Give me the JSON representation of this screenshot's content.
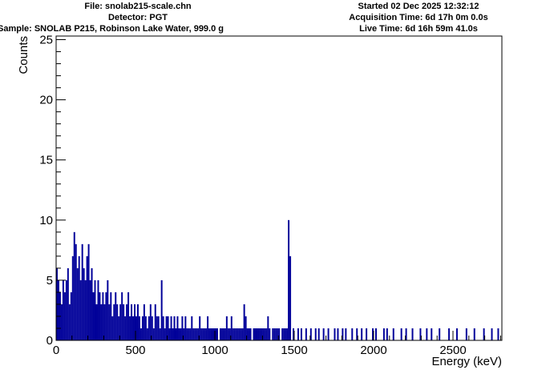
{
  "header": {
    "file": "File: snolab215-scale.chn",
    "detector": "Detector: PGT",
    "sample": "Sample: SNOLAB P215, Robinson Lake Water, 999.0 g",
    "started": "Started 02 Dec 2025 12:32:12",
    "acquisition": "Acquisition Time: 6d 17h 0m 0.0s",
    "live": "Live Time: 6d 16h 59m 41.0s"
  },
  "chart_data": {
    "type": "bar",
    "title": "",
    "xlabel": "Energy (keV)",
    "ylabel": "Counts",
    "xlim": [
      0,
      2808
    ],
    "ylim": [
      0,
      25.3
    ],
    "x_ticks": [
      "0",
      "500",
      "1000",
      "1500",
      "2000",
      "2500"
    ],
    "x_tick_values": [
      0,
      500,
      1000,
      1500,
      2000,
      2500
    ],
    "y_ticks": [
      "0",
      "5",
      "10",
      "15",
      "20",
      "25"
    ],
    "y_tick_values": [
      0,
      5,
      10,
      15,
      20,
      25
    ],
    "bin_width": 10,
    "x_start": 0,
    "color": "#000099",
    "counts": [
      6,
      5,
      4,
      3,
      5,
      4,
      5,
      6,
      3,
      4,
      7,
      9,
      8,
      6,
      7,
      5,
      8,
      6,
      5,
      7,
      8,
      5,
      6,
      4,
      5,
      3,
      5,
      4,
      3,
      4,
      3,
      4,
      5,
      3,
      4,
      2,
      3,
      4,
      3,
      2,
      3,
      4,
      3,
      2,
      3,
      4,
      2,
      3,
      2,
      3,
      2,
      3,
      2,
      1,
      2,
      3,
      2,
      1,
      2,
      3,
      2,
      1,
      3,
      2,
      2,
      1,
      5,
      2,
      1,
      2,
      2,
      1,
      2,
      1,
      2,
      1,
      2,
      1,
      1,
      2,
      1,
      2,
      1,
      1,
      1,
      2,
      1,
      1,
      1,
      1,
      2,
      1,
      1,
      1,
      1,
      2,
      1,
      1,
      1,
      1,
      1,
      1,
      0,
      1,
      1,
      1,
      1,
      2,
      1,
      1,
      2,
      1,
      1,
      1,
      1,
      1,
      1,
      1,
      3,
      2,
      1,
      1,
      1,
      0,
      1,
      1,
      1,
      1,
      1,
      1,
      1,
      1,
      1,
      2,
      1,
      0,
      1,
      1,
      1,
      1,
      1,
      0,
      1,
      1,
      1,
      1,
      10,
      7,
      0,
      1,
      0,
      0,
      1,
      0,
      1,
      0,
      0,
      1,
      0,
      0,
      1,
      0,
      0,
      1,
      0,
      1,
      0,
      0,
      1,
      0,
      0,
      1,
      0,
      0,
      0,
      1,
      0,
      1,
      0,
      0,
      1,
      0,
      1,
      0,
      0,
      0,
      1,
      0,
      0,
      1,
      0,
      0,
      1,
      0,
      0,
      1,
      0,
      0,
      0,
      1,
      0,
      1,
      0,
      0,
      0,
      0,
      1,
      0,
      1,
      0,
      0,
      0,
      1,
      0,
      0,
      0,
      0,
      1,
      0,
      0,
      1,
      0,
      0,
      0,
      1,
      0,
      0,
      0,
      0,
      1,
      0,
      0,
      0,
      1,
      0,
      0,
      1,
      0,
      0,
      0,
      0,
      1,
      0,
      0,
      0,
      0,
      0,
      1,
      0,
      0,
      0,
      0,
      1,
      0,
      0,
      0,
      0,
      0,
      1,
      0,
      0,
      0,
      0,
      1,
      0,
      0,
      0,
      0,
      0,
      1,
      0,
      0,
      0,
      0,
      1,
      0,
      0,
      0,
      1,
      0
    ]
  }
}
